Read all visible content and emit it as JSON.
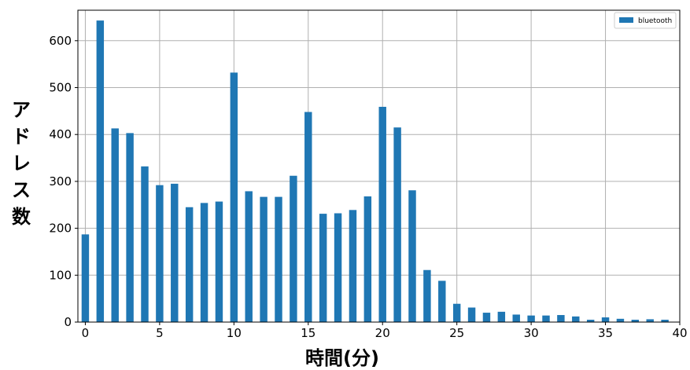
{
  "chart_data": {
    "type": "bar",
    "xlabel": "時間(分)",
    "ylabel": "アドレス数",
    "xlim": [
      -0.5,
      40
    ],
    "ylim": [
      0,
      665
    ],
    "x_ticks": [
      0,
      5,
      10,
      15,
      20,
      25,
      30,
      35,
      40
    ],
    "y_ticks": [
      0,
      100,
      200,
      300,
      400,
      500,
      600
    ],
    "grid": true,
    "legend_position": "top-right",
    "series": [
      {
        "name": "bluetooth",
        "color": "#1f77b4",
        "x": [
          0,
          1,
          2,
          3,
          4,
          5,
          6,
          7,
          8,
          9,
          10,
          11,
          12,
          13,
          14,
          15,
          16,
          17,
          18,
          19,
          20,
          21,
          22,
          23,
          24,
          25,
          26,
          27,
          28,
          29,
          30,
          31,
          32,
          33,
          34,
          35,
          36,
          37,
          38,
          39
        ],
        "values": [
          187,
          643,
          413,
          403,
          332,
          292,
          295,
          245,
          254,
          257,
          532,
          279,
          267,
          267,
          312,
          448,
          231,
          232,
          239,
          268,
          459,
          415,
          281,
          111,
          88,
          39,
          31,
          20,
          22,
          16,
          14,
          14,
          15,
          12,
          5,
          10,
          7,
          5,
          6,
          5
        ]
      }
    ]
  }
}
